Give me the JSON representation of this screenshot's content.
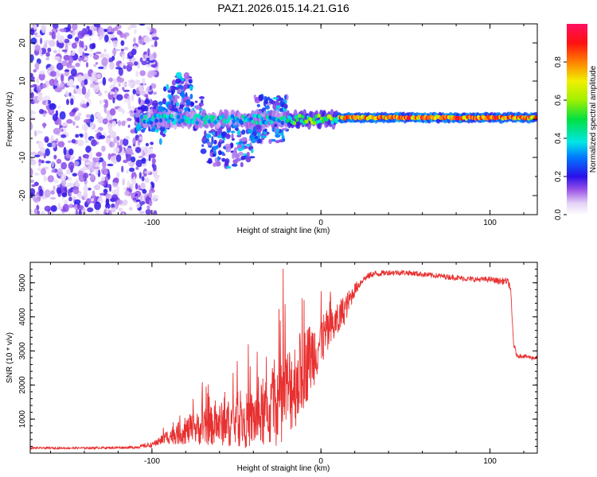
{
  "title": "PAZ1.2026.015.14.21.G16",
  "chart_data": [
    {
      "type": "heatmap",
      "name": "spectrogram",
      "xlabel": "Height of straight line (km)",
      "ylabel": "Frequency (Hz)",
      "xlim": [
        -172,
        128
      ],
      "ylim": [
        -25,
        25
      ],
      "xticks": [
        -100,
        0,
        100
      ],
      "yticks": [
        -20,
        -10,
        0,
        10,
        20
      ],
      "colorbar": {
        "label": "Normalized spectral amplitude",
        "range": [
          0,
          1
        ],
        "ticks": [
          0.0,
          0.2,
          0.4,
          0.6,
          0.8
        ],
        "tick_labels": [
          "0.0",
          "0.2",
          "0.4",
          "0.6",
          "0.8"
        ]
      },
      "description_points": [
        {
          "x": -100,
          "f": 0,
          "amp": 0.35
        },
        {
          "x": -80,
          "f": 7,
          "amp": 0.25
        },
        {
          "x": -60,
          "f": -5,
          "amp": 0.2
        },
        {
          "x": -20,
          "f": 1,
          "amp": 0.3
        },
        {
          "x": 0,
          "f": 0,
          "amp": 0.45
        },
        {
          "x": 20,
          "f": 0,
          "amp": 0.85
        },
        {
          "x": 60,
          "f": 0.5,
          "amp": 0.95
        },
        {
          "x": 100,
          "f": 0.5,
          "amp": 0.85
        },
        {
          "x": 128,
          "f": 0.5,
          "amp": 0.6
        }
      ]
    },
    {
      "type": "line",
      "name": "snr",
      "xlabel": "Height of straight line (km)",
      "ylabel": "SNR (10 * v/v)",
      "xlim": [
        -172,
        128
      ],
      "ylim": [
        0,
        5600
      ],
      "xticks": [
        -100,
        0,
        100
      ],
      "yticks": [
        1000,
        2000,
        3000,
        4000,
        5000
      ],
      "color": "#e83030",
      "series": [
        {
          "name": "SNR",
          "x": [
            -172,
            -140,
            -110,
            -100,
            -90,
            -80,
            -70,
            -60,
            -50,
            -40,
            -30,
            -25,
            -20,
            -15,
            -10,
            -5,
            0,
            5,
            10,
            15,
            20,
            25,
            30,
            40,
            50,
            60,
            70,
            80,
            90,
            100,
            105,
            110,
            112,
            114,
            116,
            120,
            125,
            128
          ],
          "y": [
            150,
            150,
            170,
            250,
            500,
            650,
            750,
            850,
            900,
            1000,
            1200,
            1500,
            1800,
            2100,
            2500,
            2900,
            3300,
            3600,
            3900,
            4300,
            4800,
            5100,
            5250,
            5300,
            5300,
            5250,
            5200,
            5150,
            5100,
            5100,
            5050,
            5050,
            4900,
            3200,
            2850,
            2850,
            2800,
            2800
          ],
          "noise_amplitude": [
            30,
            30,
            40,
            80,
            300,
            500,
            650,
            800,
            900,
            1100,
            1300,
            1600,
            1700,
            1700,
            1500,
            1300,
            1000,
            800,
            600,
            400,
            200,
            100,
            100,
            80,
            80,
            80,
            80,
            80,
            80,
            80,
            100,
            100,
            150,
            100,
            60,
            60,
            60,
            60
          ]
        }
      ]
    }
  ]
}
